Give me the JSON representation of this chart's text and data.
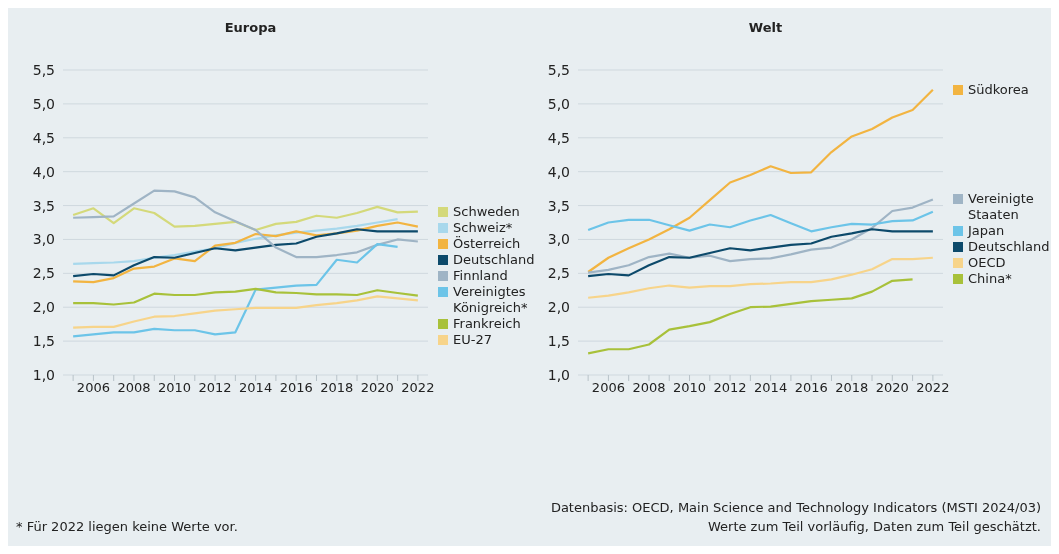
{
  "chart_data": [
    {
      "type": "line",
      "title": "Europa",
      "x": [
        2005,
        2006,
        2007,
        2008,
        2009,
        2010,
        2011,
        2012,
        2013,
        2014,
        2015,
        2016,
        2017,
        2018,
        2019,
        2020,
        2021,
        2022
      ],
      "xlim": [
        2004.5,
        2022.5
      ],
      "xticks": [
        {
          "value": 2005,
          "label": null
        },
        2006,
        {
          "value": 2007,
          "label": null
        },
        2008,
        {
          "value": 2009,
          "label": null
        },
        2010,
        {
          "value": 2011,
          "label": null
        },
        2012,
        {
          "value": 2013,
          "label": null
        },
        2014,
        {
          "value": 2015,
          "label": null
        },
        2016,
        {
          "value": 2017,
          "label": null
        },
        2018,
        {
          "value": 2019,
          "label": null
        },
        2020,
        {
          "value": 2021,
          "label": null
        },
        2022
      ],
      "ylim": [
        1,
        5.5
      ],
      "yticks": [
        {
          "value": 1,
          "label": "1,0"
        },
        {
          "value": 1.5,
          "label": "1,5"
        },
        {
          "value": 2,
          "label": "2,0"
        },
        {
          "value": 2.5,
          "label": "2,5"
        },
        {
          "value": 3,
          "label": "3,0"
        },
        {
          "value": 3.5,
          "label": "3,5"
        },
        {
          "value": 4,
          "label": "4,0"
        },
        {
          "value": 4.5,
          "label": "4,5"
        },
        {
          "value": 5,
          "label": "5,0"
        },
        {
          "value": 5.5,
          "label": "5,5"
        }
      ],
      "grid": "y",
      "legend": "right",
      "series": [
        {
          "name": "Schweden",
          "color": "#d4d97a",
          "values": [
            3.36,
            3.46,
            3.24,
            3.46,
            3.39,
            3.19,
            3.2,
            3.23,
            3.26,
            3.14,
            3.23,
            3.26,
            3.35,
            3.32,
            3.39,
            3.48,
            3.4,
            3.41
          ]
        },
        {
          "name": "Schweiz*",
          "color": "#a8d8ec",
          "values": [
            2.64,
            2.65,
            2.66,
            2.68,
            2.73,
            2.77,
            2.82,
            2.87,
            2.95,
            3.01,
            3.06,
            3.1,
            3.13,
            3.16,
            3.2,
            3.25,
            3.3,
            null
          ]
        },
        {
          "name": "Österreich",
          "color": "#f2b441",
          "values": [
            2.38,
            2.37,
            2.43,
            2.57,
            2.6,
            2.72,
            2.68,
            2.91,
            2.95,
            3.08,
            3.05,
            3.12,
            3.06,
            3.09,
            3.13,
            3.2,
            3.25,
            3.19
          ]
        },
        {
          "name": "Deutschland",
          "color": "#0d4a6b",
          "values": [
            2.46,
            2.49,
            2.47,
            2.62,
            2.74,
            2.73,
            2.8,
            2.87,
            2.84,
            2.88,
            2.92,
            2.94,
            3.04,
            3.09,
            3.15,
            3.12,
            3.12,
            3.12
          ]
        },
        {
          "name": "Finnland",
          "color": "#9fb4c5",
          "values": [
            3.32,
            3.33,
            3.34,
            3.53,
            3.72,
            3.71,
            3.62,
            3.4,
            3.27,
            3.14,
            2.88,
            2.74,
            2.74,
            2.77,
            2.81,
            2.92,
            3,
            2.97
          ]
        },
        {
          "name": "Vereinigtes Königreich*",
          "color": "#6cc4e8",
          "values": [
            1.57,
            1.6,
            1.63,
            1.63,
            1.68,
            1.66,
            1.66,
            1.6,
            1.63,
            2.26,
            2.29,
            2.32,
            2.33,
            2.7,
            2.66,
            2.93,
            2.89,
            null
          ]
        },
        {
          "name": "Frankreich",
          "color": "#a8c13a",
          "values": [
            2.06,
            2.06,
            2.04,
            2.07,
            2.2,
            2.18,
            2.18,
            2.22,
            2.23,
            2.27,
            2.22,
            2.21,
            2.19,
            2.19,
            2.18,
            2.25,
            2.21,
            2.17
          ]
        },
        {
          "name": "EU-27",
          "color": "#f7d48a",
          "values": [
            1.7,
            1.71,
            1.71,
            1.79,
            1.86,
            1.87,
            1.91,
            1.95,
            1.97,
            1.99,
            1.99,
            1.99,
            2.03,
            2.06,
            2.1,
            2.16,
            2.13,
            2.1
          ]
        }
      ],
      "annotations": [
        "* Für 2022 liegen keine Werte vor."
      ]
    },
    {
      "type": "line",
      "title": "Welt",
      "x": [
        2005,
        2006,
        2007,
        2008,
        2009,
        2010,
        2011,
        2012,
        2013,
        2014,
        2015,
        2016,
        2017,
        2018,
        2019,
        2020,
        2021,
        2022
      ],
      "xlim": [
        2004.5,
        2022.5
      ],
      "xticks": [
        {
          "value": 2005,
          "label": null
        },
        2006,
        {
          "value": 2007,
          "label": null
        },
        2008,
        {
          "value": 2009,
          "label": null
        },
        2010,
        {
          "value": 2011,
          "label": null
        },
        2012,
        {
          "value": 2013,
          "label": null
        },
        2014,
        {
          "value": 2015,
          "label": null
        },
        2016,
        {
          "value": 2017,
          "label": null
        },
        2018,
        {
          "value": 2019,
          "label": null
        },
        2020,
        {
          "value": 2021,
          "label": null
        },
        2022
      ],
      "ylim": [
        1,
        5.5
      ],
      "yticks": [
        {
          "value": 1,
          "label": "1,0"
        },
        {
          "value": 1.5,
          "label": "1,5"
        },
        {
          "value": 2,
          "label": "2,0"
        },
        {
          "value": 2.5,
          "label": "2,5"
        },
        {
          "value": 3,
          "label": "3,0"
        },
        {
          "value": 3.5,
          "label": "3,5"
        },
        {
          "value": 4,
          "label": "4,0"
        },
        {
          "value": 4.5,
          "label": "4,5"
        },
        {
          "value": 5,
          "label": "5,0"
        },
        {
          "value": 5.5,
          "label": "5,5"
        }
      ],
      "grid": "y",
      "legend": "right",
      "series": [
        {
          "name": "Südkorea",
          "color": "#f2b441",
          "values": [
            2.52,
            2.73,
            2.87,
            3,
            3.15,
            3.32,
            3.58,
            3.84,
            3.95,
            4.08,
            3.98,
            3.99,
            4.29,
            4.52,
            4.63,
            4.8,
            4.91,
            5.21
          ]
        },
        {
          "name": "Vereinigte Staaten",
          "color": "#9fb4c5",
          "values": [
            2.51,
            2.55,
            2.62,
            2.74,
            2.79,
            2.73,
            2.76,
            2.68,
            2.71,
            2.72,
            2.78,
            2.85,
            2.88,
            3,
            3.17,
            3.42,
            3.47,
            3.59
          ]
        },
        {
          "name": "Japan",
          "color": "#6cc4e8",
          "values": [
            3.14,
            3.25,
            3.29,
            3.29,
            3.21,
            3.13,
            3.22,
            3.18,
            3.28,
            3.36,
            3.24,
            3.12,
            3.18,
            3.23,
            3.22,
            3.27,
            3.28,
            3.41
          ]
        },
        {
          "name": "Deutschland",
          "color": "#0d4a6b",
          "values": [
            2.46,
            2.49,
            2.47,
            2.62,
            2.74,
            2.73,
            2.8,
            2.87,
            2.84,
            2.88,
            2.92,
            2.94,
            3.04,
            3.09,
            3.15,
            3.12,
            3.12,
            3.12
          ]
        },
        {
          "name": "OECD",
          "color": "#f7d48a",
          "values": [
            2.14,
            2.17,
            2.22,
            2.28,
            2.32,
            2.29,
            2.31,
            2.31,
            2.34,
            2.35,
            2.37,
            2.37,
            2.41,
            2.48,
            2.56,
            2.71,
            2.71,
            2.73
          ]
        },
        {
          "name": "China*",
          "color": "#a8c13a",
          "values": [
            1.32,
            1.38,
            1.38,
            1.45,
            1.67,
            1.72,
            1.78,
            1.9,
            2,
            2.01,
            2.05,
            2.09,
            2.11,
            2.13,
            2.23,
            2.39,
            2.41,
            null
          ]
        }
      ],
      "annotations": [
        "Datenbasis: OECD, Main Science and Technology Indicators (MSTI 2024/03)",
        "Werte zum Teil vorläufig, Daten zum Teil geschätzt."
      ]
    }
  ]
}
